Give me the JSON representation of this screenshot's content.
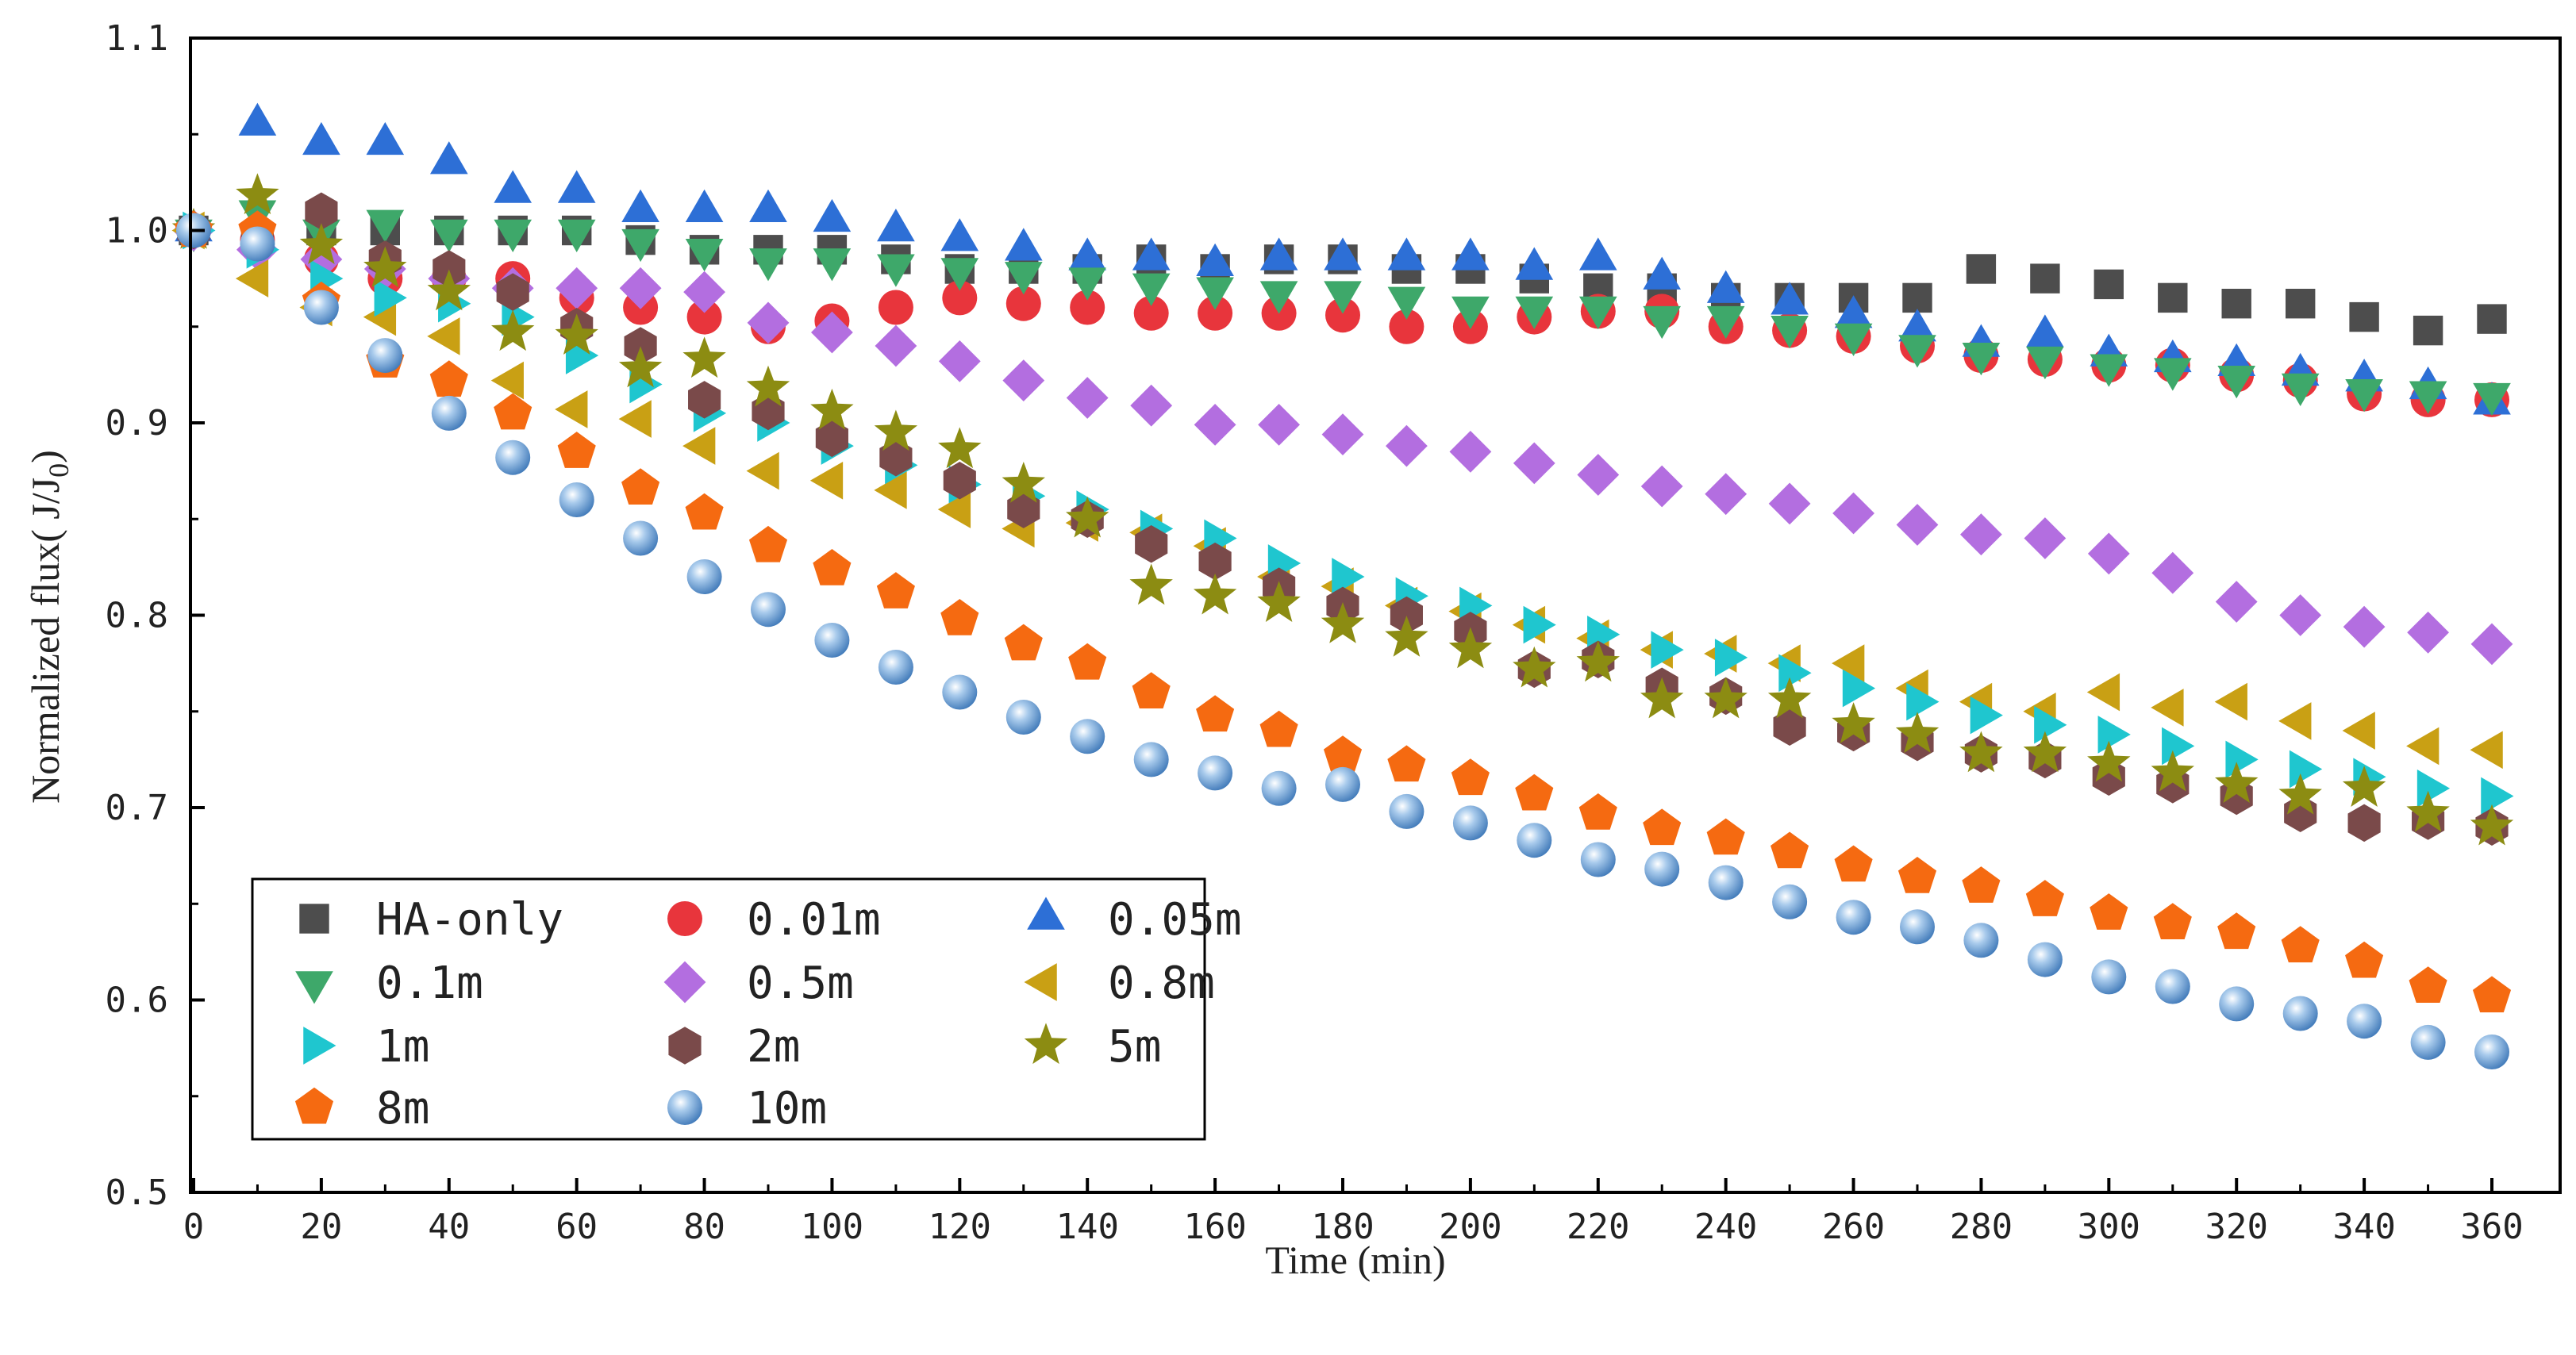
{
  "chart_data": {
    "type": "scatter",
    "xlabel": "Time (min)",
    "ylabel_prefix": "Normalized flux( J/J",
    "ylabel_sub": "0",
    "ylabel_suffix": ")",
    "xlim": [
      -2,
      370
    ],
    "ylim": [
      0.5,
      1.1
    ],
    "x_ticks": [
      0,
      20,
      40,
      60,
      80,
      100,
      120,
      140,
      160,
      180,
      200,
      220,
      240,
      260,
      280,
      300,
      320,
      340,
      360
    ],
    "x_tick_labels": [
      "0",
      "20",
      "40",
      "60",
      "80",
      "100",
      "120",
      "140",
      "160",
      "180",
      "200",
      "220",
      "240",
      "260",
      "280",
      "300",
      "320",
      "340",
      "360"
    ],
    "y_ticks": [
      0.5,
      0.6,
      0.7,
      0.8,
      0.9,
      1.0,
      1.1
    ],
    "y_tick_labels": [
      "0.5",
      "0.6",
      "0.7",
      "0.8",
      "0.9",
      "1.0",
      "1.1"
    ],
    "grid": false,
    "legend_position": "bottom-left",
    "x": [
      0,
      10,
      20,
      30,
      40,
      50,
      60,
      70,
      80,
      90,
      100,
      110,
      120,
      130,
      140,
      150,
      160,
      170,
      180,
      190,
      200,
      210,
      220,
      230,
      240,
      250,
      260,
      270,
      280,
      290,
      300,
      310,
      320,
      330,
      340,
      350,
      360
    ],
    "series": [
      {
        "name": "HA-only",
        "marker": "square",
        "color": "#4d4d4d",
        "values": [
          1.0,
          0.995,
          1.0,
          1.0,
          1.0,
          1.0,
          1.0,
          0.995,
          0.99,
          0.99,
          0.99,
          0.985,
          0.98,
          0.98,
          0.98,
          0.985,
          0.98,
          0.985,
          0.985,
          0.98,
          0.98,
          0.975,
          0.97,
          0.97,
          0.965,
          0.965,
          0.965,
          0.965,
          0.98,
          0.975,
          0.972,
          0.965,
          0.962,
          0.962,
          0.955,
          0.948,
          0.954
        ]
      },
      {
        "name": "0.01m",
        "marker": "circle",
        "color": "#e8353c",
        "values": [
          1.0,
          0.995,
          0.985,
          0.975,
          0.975,
          0.975,
          0.965,
          0.96,
          0.955,
          0.95,
          0.953,
          0.96,
          0.965,
          0.962,
          0.96,
          0.957,
          0.957,
          0.957,
          0.956,
          0.95,
          0.95,
          0.955,
          0.958,
          0.958,
          0.95,
          0.948,
          0.945,
          0.94,
          0.935,
          0.933,
          0.93,
          0.93,
          0.925,
          0.922,
          0.915,
          0.912,
          0.912
        ]
      },
      {
        "name": "0.05m",
        "marker": "triangle-up",
        "color": "#2d6fd6",
        "values": [
          1.0,
          1.055,
          1.045,
          1.045,
          1.035,
          1.02,
          1.02,
          1.01,
          1.01,
          1.01,
          1.005,
          1.0,
          0.995,
          0.99,
          0.985,
          0.985,
          0.982,
          0.985,
          0.985,
          0.985,
          0.985,
          0.98,
          0.985,
          0.975,
          0.968,
          0.962,
          0.955,
          0.948,
          0.94,
          0.945,
          0.935,
          0.932,
          0.93,
          0.925,
          0.922,
          0.918,
          0.91
        ]
      },
      {
        "name": "0.1m",
        "marker": "triangle-down",
        "color": "#3ea86a",
        "values": [
          1.0,
          1.01,
          1.0,
          1.005,
          1.0,
          1.0,
          1.0,
          0.995,
          0.99,
          0.985,
          0.985,
          0.982,
          0.98,
          0.978,
          0.975,
          0.972,
          0.97,
          0.968,
          0.968,
          0.965,
          0.96,
          0.96,
          0.96,
          0.955,
          0.955,
          0.95,
          0.946,
          0.94,
          0.936,
          0.934,
          0.93,
          0.928,
          0.924,
          0.92,
          0.917,
          0.916,
          0.915
        ]
      },
      {
        "name": "0.5m",
        "marker": "diamond",
        "color": "#b36ee0",
        "values": [
          1.0,
          0.99,
          0.985,
          0.98,
          0.975,
          0.97,
          0.97,
          0.97,
          0.968,
          0.952,
          0.947,
          0.94,
          0.932,
          0.922,
          0.913,
          0.909,
          0.899,
          0.899,
          0.894,
          0.888,
          0.885,
          0.879,
          0.873,
          0.867,
          0.863,
          0.858,
          0.853,
          0.847,
          0.842,
          0.84,
          0.832,
          0.822,
          0.807,
          0.8,
          0.794,
          0.791,
          0.785
        ]
      },
      {
        "name": "0.8m",
        "marker": "triangle-left",
        "color": "#c9a014",
        "values": [
          1.0,
          0.975,
          0.96,
          0.955,
          0.945,
          0.922,
          0.907,
          0.902,
          0.888,
          0.875,
          0.87,
          0.865,
          0.855,
          0.845,
          0.848,
          0.843,
          0.836,
          0.82,
          0.815,
          0.805,
          0.802,
          0.795,
          0.788,
          0.782,
          0.78,
          0.775,
          0.775,
          0.762,
          0.755,
          0.75,
          0.76,
          0.752,
          0.755,
          0.745,
          0.74,
          0.732,
          0.73
        ]
      },
      {
        "name": "1m",
        "marker": "triangle-right",
        "color": "#1fc6cf",
        "values": [
          1.0,
          0.99,
          0.975,
          0.965,
          0.962,
          0.955,
          0.935,
          0.92,
          0.905,
          0.9,
          0.888,
          0.878,
          0.868,
          0.862,
          0.855,
          0.845,
          0.84,
          0.827,
          0.82,
          0.81,
          0.805,
          0.795,
          0.79,
          0.782,
          0.778,
          0.77,
          0.762,
          0.755,
          0.748,
          0.743,
          0.738,
          0.732,
          0.725,
          0.72,
          0.716,
          0.71,
          0.706
        ]
      },
      {
        "name": "2m",
        "marker": "hexagon",
        "color": "#7a4a4a",
        "values": [
          1.0,
          0.995,
          1.01,
          0.985,
          0.98,
          0.968,
          0.95,
          0.94,
          0.912,
          0.906,
          0.892,
          0.882,
          0.87,
          0.855,
          0.85,
          0.837,
          0.828,
          0.815,
          0.805,
          0.8,
          0.792,
          0.772,
          0.777,
          0.763,
          0.758,
          0.742,
          0.739,
          0.734,
          0.728,
          0.725,
          0.716,
          0.712,
          0.706,
          0.697,
          0.692,
          0.693,
          0.69
        ]
      },
      {
        "name": "5m",
        "marker": "star",
        "color": "#8c8c12",
        "values": [
          1.0,
          1.018,
          0.992,
          0.98,
          0.968,
          0.947,
          0.945,
          0.928,
          0.933,
          0.918,
          0.906,
          0.895,
          0.886,
          0.868,
          0.85,
          0.815,
          0.81,
          0.806,
          0.795,
          0.788,
          0.782,
          0.772,
          0.775,
          0.756,
          0.756,
          0.756,
          0.743,
          0.738,
          0.728,
          0.728,
          0.723,
          0.718,
          0.712,
          0.706,
          0.71,
          0.697,
          0.69
        ]
      },
      {
        "name": "8m",
        "marker": "pentagon",
        "color": "#f56a11",
        "values": [
          1.0,
          1.0,
          0.963,
          0.932,
          0.922,
          0.905,
          0.885,
          0.866,
          0.853,
          0.836,
          0.824,
          0.812,
          0.798,
          0.785,
          0.775,
          0.76,
          0.748,
          0.74,
          0.727,
          0.722,
          0.715,
          0.707,
          0.697,
          0.689,
          0.684,
          0.677,
          0.67,
          0.664,
          0.659,
          0.652,
          0.645,
          0.64,
          0.635,
          0.628,
          0.62,
          0.607,
          0.602
        ]
      },
      {
        "name": "10m",
        "marker": "sphere",
        "color": "#6aa3d8",
        "values": [
          1.0,
          0.993,
          0.96,
          0.935,
          0.905,
          0.882,
          0.86,
          0.84,
          0.82,
          0.803,
          0.787,
          0.773,
          0.76,
          0.747,
          0.737,
          0.725,
          0.718,
          0.71,
          0.712,
          0.698,
          0.692,
          0.683,
          0.673,
          0.668,
          0.661,
          0.651,
          0.643,
          0.638,
          0.631,
          0.621,
          0.612,
          0.607,
          0.598,
          0.593,
          0.589,
          0.578,
          0.573
        ]
      }
    ],
    "legend_rows": [
      [
        "HA-only",
        "0.01m",
        "0.05m"
      ],
      [
        "0.1m",
        "0.5m",
        "0.8m"
      ],
      [
        "1m",
        "2m",
        "5m"
      ],
      [
        "8m",
        "10m"
      ]
    ]
  }
}
